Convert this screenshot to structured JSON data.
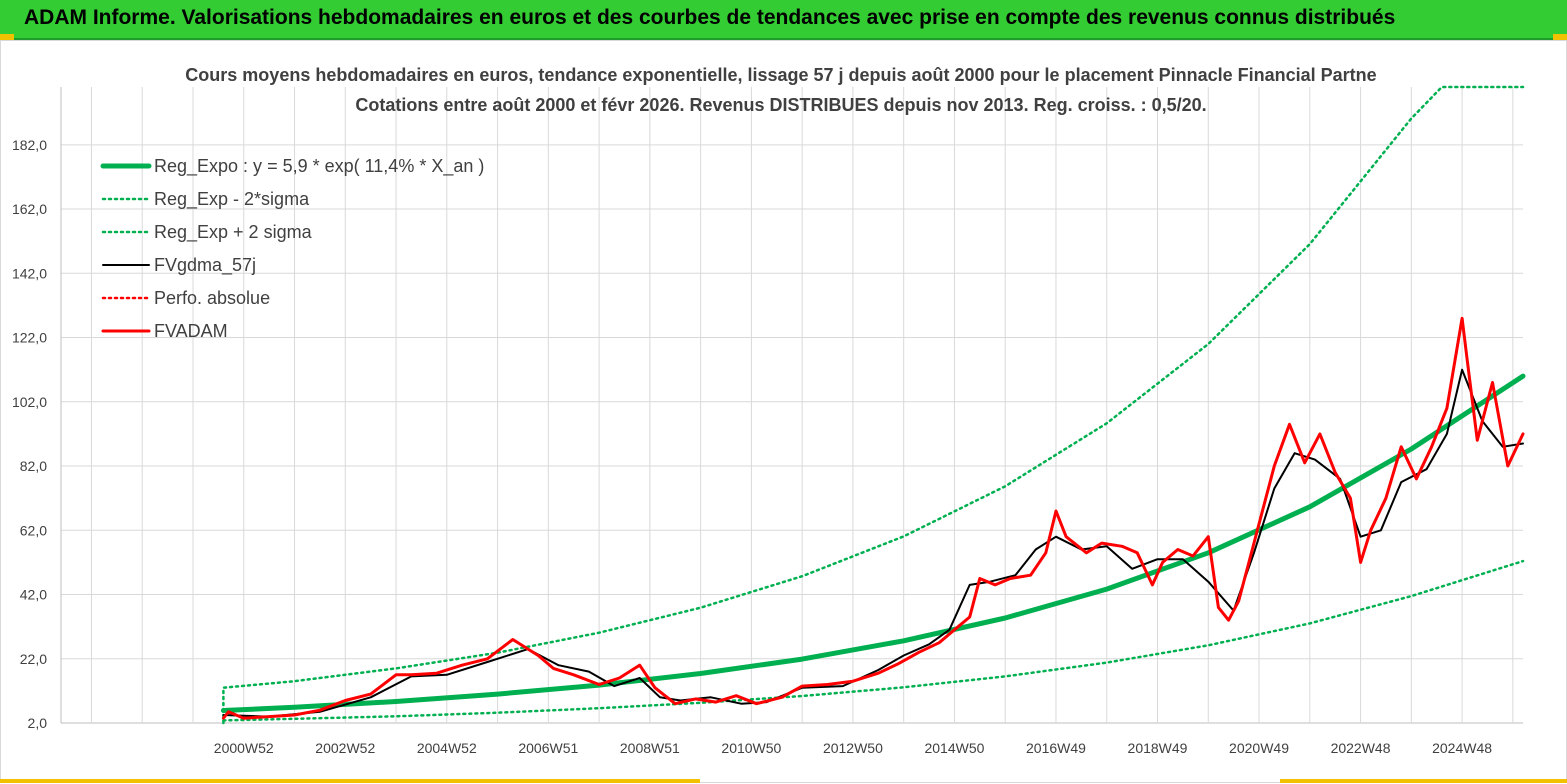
{
  "header": {
    "title": "ADAM Informe. Valorisations hebdomadaires en euros et des courbes de tendances avec prise en compte des revenus connus distribués"
  },
  "colors": {
    "banner": "#33cc33",
    "regression": "#00b050",
    "fvgdma": "#000000",
    "fvadam": "#ff0000",
    "perfo": "#ff0000",
    "grid": "#d9d9d9",
    "text": "#404040"
  },
  "chart_data": {
    "type": "line",
    "title": "Cours moyens hebdomadaires en euros, tendance exponentielle, lissage 57 j depuis août 2000 pour le placement Pinnacle Financial Partne",
    "subtitle": "Cotations entre août 2000 et févr 2026. Revenus DISTRIBUES depuis nov 2013. Reg. croiss. : 0,5/20.",
    "xlabel": "",
    "ylabel": "",
    "ylim": [
      2,
      200
    ],
    "xlim": [
      1997.4,
      2026.2
    ],
    "yticks": [
      "2,0",
      "22,0",
      "42,0",
      "62,0",
      "82,0",
      "102,0",
      "122,0",
      "142,0",
      "162,0",
      "182,0"
    ],
    "xticks": [
      {
        "x": 2001.0,
        "label": "2000W52"
      },
      {
        "x": 2003.0,
        "label": "2002W52"
      },
      {
        "x": 2005.0,
        "label": "2004W52"
      },
      {
        "x": 2007.0,
        "label": "2006W51"
      },
      {
        "x": 2009.0,
        "label": "2008W51"
      },
      {
        "x": 2011.0,
        "label": "2010W50"
      },
      {
        "x": 2013.0,
        "label": "2012W50"
      },
      {
        "x": 2015.0,
        "label": "2014W50"
      },
      {
        "x": 2017.0,
        "label": "2016W49"
      },
      {
        "x": 2019.0,
        "label": "2018W49"
      },
      {
        "x": 2021.0,
        "label": "2020W49"
      },
      {
        "x": 2023.0,
        "label": "2022W48"
      },
      {
        "x": 2025.0,
        "label": "2024W48"
      }
    ],
    "grid": true,
    "legend_position": "top-left",
    "series": [
      {
        "name": "Reg_Expo : y = 5,9 * exp( 11,4% *  X_an )",
        "style": "solid-thick",
        "color": "#00b050",
        "x": [
          2000.6,
          2002,
          2004,
          2006,
          2008,
          2010,
          2012,
          2014,
          2016,
          2018,
          2020,
          2022,
          2024,
          2026.2
        ],
        "y": [
          5.9,
          6.9,
          8.7,
          11.0,
          13.8,
          17.4,
          21.9,
          27.6,
          34.7,
          43.7,
          55.0,
          69.3,
          87.3,
          110.0
        ]
      },
      {
        "name": "Reg_Exp - 2*sigma",
        "style": "dotted",
        "color": "#00b050",
        "x": [
          2000.6,
          2002,
          2004,
          2006,
          2008,
          2010,
          2012,
          2014,
          2016,
          2018,
          2020,
          2022,
          2024,
          2026.2
        ],
        "y": [
          2.8,
          3.3,
          4.1,
          5.2,
          6.6,
          8.3,
          10.4,
          13.1,
          16.5,
          20.8,
          26.2,
          33.0,
          41.5,
          52.4
        ]
      },
      {
        "name": "Reg_Exp + 2 sigma",
        "style": "dotted",
        "color": "#00b050",
        "x": [
          2000.6,
          2000.6,
          2002,
          2004,
          2006,
          2008,
          2010,
          2012,
          2014,
          2016,
          2018,
          2020,
          2022,
          2024,
          2024.6,
          2026.2
        ],
        "y": [
          2.0,
          13.0,
          15.0,
          19.0,
          23.9,
          30.1,
          37.9,
          47.7,
          60.1,
          75.7,
          95.3,
          120.0,
          151.1,
          190.2,
          200.0,
          200.0
        ]
      },
      {
        "name": "FVgdma_57j",
        "style": "solid",
        "color": "#000000",
        "x": [
          2000.6,
          2001.5,
          2002.5,
          2003.5,
          2004.3,
          2005.0,
          2005.8,
          2006.6,
          2007.2,
          2007.8,
          2008.3,
          2008.8,
          2009.2,
          2009.6,
          2010.2,
          2010.8,
          2011.3,
          2012.0,
          2012.8,
          2013.5,
          2014.0,
          2014.5,
          2014.9,
          2015.3,
          2015.7,
          2016.2,
          2016.6,
          2017.0,
          2017.5,
          2018.0,
          2018.5,
          2019.0,
          2019.5,
          2020.0,
          2020.5,
          2020.9,
          2021.3,
          2021.7,
          2022.1,
          2022.6,
          2023.0,
          2023.4,
          2023.8,
          2024.3,
          2024.7,
          2025.0,
          2025.4,
          2025.8,
          2026.2
        ],
        "y": [
          4.5,
          4.0,
          5.5,
          10,
          16.5,
          17,
          21,
          25,
          20,
          18,
          13.5,
          16,
          10,
          9,
          10,
          8,
          8.5,
          13,
          13.5,
          18.5,
          23,
          26.5,
          31,
          45,
          46,
          48,
          56,
          60,
          56,
          57,
          50,
          53,
          53,
          46,
          37,
          55,
          75,
          86,
          84,
          78,
          60,
          62,
          77,
          81,
          92,
          112,
          96,
          88,
          89
        ]
      },
      {
        "name": "Perfo. absolue",
        "style": "dotted",
        "color": "#ff0000",
        "x": [],
        "y": []
      },
      {
        "name": "FVADAM",
        "style": "solid-thick",
        "color": "#ff0000",
        "x": [
          2000.6,
          2000.7,
          2001.0,
          2001.5,
          2002.0,
          2002.5,
          2003.0,
          2003.5,
          2004.0,
          2004.3,
          2004.8,
          2005.3,
          2005.8,
          2006.3,
          2006.8,
          2007.1,
          2007.5,
          2008.0,
          2008.4,
          2008.8,
          2009.1,
          2009.5,
          2009.9,
          2010.3,
          2010.7,
          2011.1,
          2011.6,
          2012.0,
          2012.5,
          2013.0,
          2013.5,
          2013.9,
          2014.3,
          2014.7,
          2015.0,
          2015.3,
          2015.5,
          2015.8,
          2016.1,
          2016.5,
          2016.8,
          2017.0,
          2017.2,
          2017.6,
          2017.9,
          2018.3,
          2018.6,
          2018.9,
          2019.1,
          2019.4,
          2019.7,
          2020.0,
          2020.2,
          2020.4,
          2020.6,
          2020.8,
          2021.1,
          2021.3,
          2021.6,
          2021.9,
          2022.2,
          2022.5,
          2022.8,
          2023.0,
          2023.2,
          2023.5,
          2023.8,
          2024.1,
          2024.4,
          2024.7,
          2025.0,
          2025.1,
          2025.3,
          2025.6,
          2025.9,
          2026.2
        ],
        "y": [
          3.5,
          5.5,
          3.5,
          4.0,
          4.5,
          6.0,
          9.0,
          11.0,
          17.0,
          17.0,
          17.5,
          20.0,
          22.0,
          28.0,
          23.0,
          19.0,
          17.0,
          14.0,
          16.0,
          20.0,
          13.0,
          8.0,
          9.5,
          8.5,
          10.5,
          8.0,
          10.0,
          13.5,
          14.0,
          15.0,
          17.5,
          20.5,
          24.0,
          27.0,
          31.0,
          35.0,
          47.0,
          45.0,
          47.0,
          48.0,
          55.0,
          68.0,
          60.0,
          55.0,
          58.0,
          57.0,
          55.0,
          45.0,
          52.0,
          56.0,
          54.0,
          60.0,
          38.0,
          34.0,
          40.0,
          52.0,
          70.0,
          82.0,
          95.0,
          83.0,
          92.0,
          80.0,
          72.0,
          52.0,
          62.0,
          72.0,
          88.0,
          78.0,
          88.0,
          100.0,
          128.0,
          115.0,
          90.0,
          108.0,
          82.0,
          92.0
        ]
      }
    ]
  }
}
